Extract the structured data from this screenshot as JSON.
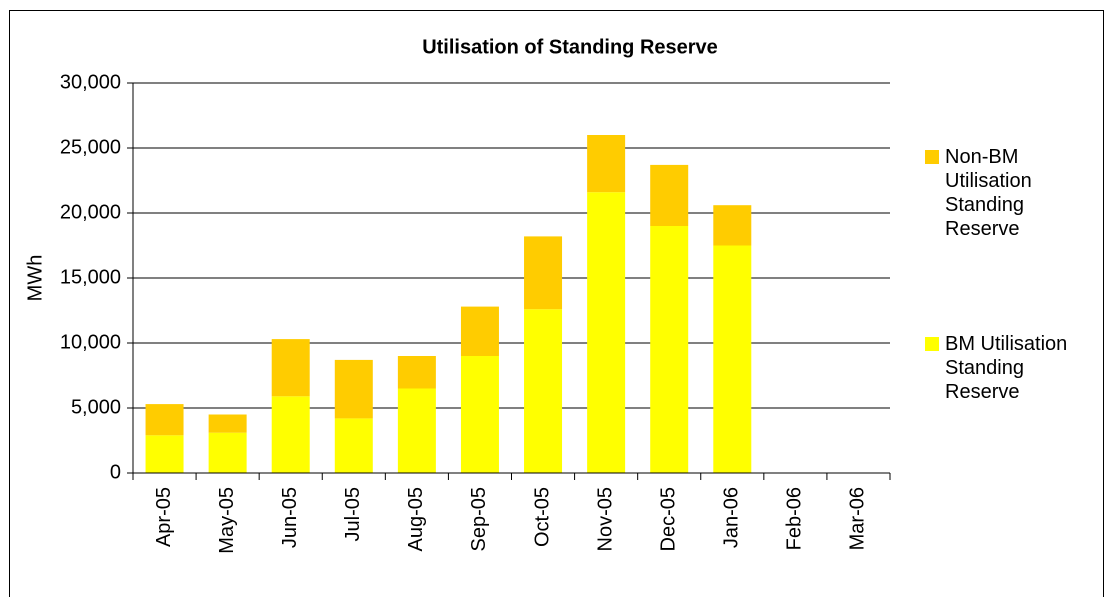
{
  "chart_data": {
    "type": "stacked_bar",
    "title": "Utilisation of Standing Reserve",
    "y_label": "MWh",
    "categories": [
      "Apr-05",
      "May-05",
      "Jun-05",
      "Jul-05",
      "Aug-05",
      "Sep-05",
      "Oct-05",
      "Nov-05",
      "Dec-05",
      "Jan-06",
      "Feb-06",
      "Mar-06"
    ],
    "series": [
      {
        "name": "BM Utilisation Standing Reserve",
        "color": "#ffff00",
        "values": [
          2900,
          3100,
          5900,
          4200,
          6500,
          9000,
          12600,
          21600,
          19000,
          17500,
          null,
          null
        ]
      },
      {
        "name": "Non-BM Utilisation Standing Reserve",
        "color": "#ffcc00",
        "values": [
          2400,
          1400,
          4400,
          4500,
          2500,
          3800,
          5600,
          4400,
          4700,
          3100,
          null,
          null
        ]
      }
    ],
    "ylim": [
      0,
      30000
    ],
    "yticks": [
      0,
      {
        "value": 5000,
        "label": "5,000"
      },
      {
        "value": 10000,
        "label": "10,000"
      },
      {
        "value": 15000,
        "label": "15,000"
      },
      {
        "value": 20000,
        "label": "20,000"
      },
      {
        "value": 25000,
        "label": "25,000"
      },
      {
        "value": 30000,
        "label": "30,000"
      }
    ],
    "grid": true,
    "legend": "right"
  }
}
